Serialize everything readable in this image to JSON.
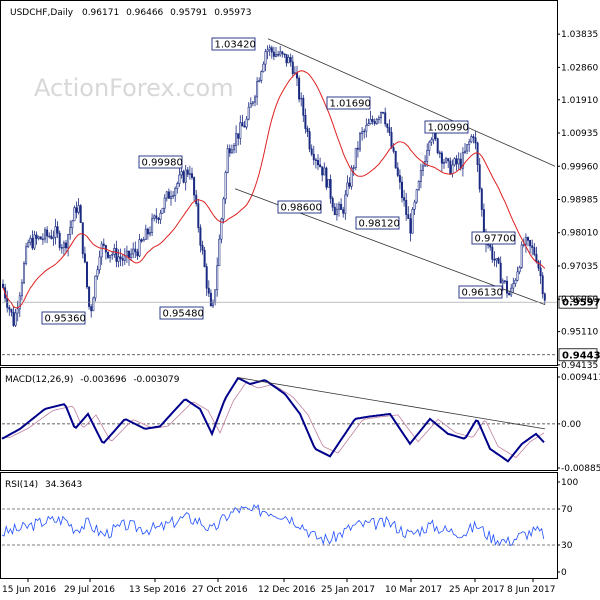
{
  "chart_data": [
    {
      "type": "candlestick",
      "title": "USDCHF,Daily",
      "ohlc": [
        "0.96171",
        "0.96466",
        "0.95791",
        "0.95973"
      ],
      "watermark": "ActionForex.com",
      "y_ticks": [
        "1.03835",
        "1.02860",
        "1.01910",
        "1.00935",
        "0.99960",
        "0.98985",
        "0.98010",
        "0.97035",
        "0.96060",
        "0.95110",
        "0.94135"
      ],
      "ylim": [
        0.9413,
        1.0425
      ],
      "current_price": "0.95973",
      "support_level": "0.94430",
      "annotations": [
        {
          "label": "1.03420",
          "value": 1.0342
        },
        {
          "label": "1.01690",
          "value": 1.0169
        },
        {
          "label": "1.00990",
          "value": 1.0099
        },
        {
          "label": "0.99980",
          "value": 0.9998
        },
        {
          "label": "0.98600",
          "value": 0.986
        },
        {
          "label": "0.98120",
          "value": 0.9812
        },
        {
          "label": "0.97700",
          "value": 0.977
        },
        {
          "label": "0.96130",
          "value": 0.9613
        },
        {
          "label": "0.95360",
          "value": 0.9536
        },
        {
          "label": "0.95480",
          "value": 0.9548
        }
      ],
      "x_ticks": [
        "15 Jun 2016",
        "29 Jul 2016",
        "13 Sep 2016",
        "27 Oct 2016",
        "12 Dec 2016",
        "25 Jan 2017",
        "10 Mar 2017",
        "25 Apr 2017",
        "8 Jun 2017"
      ],
      "moving_average": true,
      "colors": {
        "candles": "#1a2a80",
        "ma": "#e02020",
        "trendline": "#333333"
      }
    },
    {
      "type": "line",
      "title": "MACD(12,26,9)",
      "values_text": [
        "-0.003696",
        "-0.003079"
      ],
      "y_ticks": [
        "0.009411",
        "0.00",
        "-0.008852"
      ],
      "colors": {
        "macd": "#00008b",
        "signal": "#c080a0"
      }
    },
    {
      "type": "line",
      "title": "RSI(14)",
      "value_text": "34.3643",
      "y_ticks": [
        "100",
        "70",
        "30",
        "0"
      ],
      "ylim": [
        0,
        100
      ],
      "levels": [
        70,
        30
      ],
      "colors": {
        "rsi": "#2050ff"
      }
    }
  ]
}
